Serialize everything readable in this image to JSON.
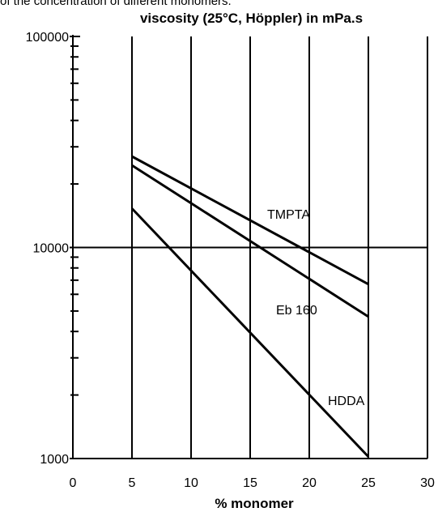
{
  "caption": "of the concentration of different monomers.",
  "chart_data": {
    "type": "line",
    "title": "viscosity (25°C, Höppler) in mPa.s",
    "xlabel": "% monomer",
    "ylabel": "",
    "xlim": [
      0,
      30
    ],
    "ylim": [
      1000,
      100000
    ],
    "yscale": "log",
    "grid": true,
    "x_tick_labels": [
      "0",
      "5",
      "10",
      "15",
      "20",
      "25",
      "30"
    ],
    "y_tick_labels": [
      "1000",
      "10000",
      "100000"
    ],
    "series": [
      {
        "name": "TMPTA",
        "x": [
          5,
          25
        ],
        "y": [
          27000,
          6700
        ]
      },
      {
        "name": "Eb 160",
        "x": [
          5,
          25
        ],
        "y": [
          24500,
          4700
        ]
      },
      {
        "name": "HDDA",
        "x": [
          5,
          25
        ],
        "y": [
          15300,
          1020
        ]
      }
    ]
  }
}
